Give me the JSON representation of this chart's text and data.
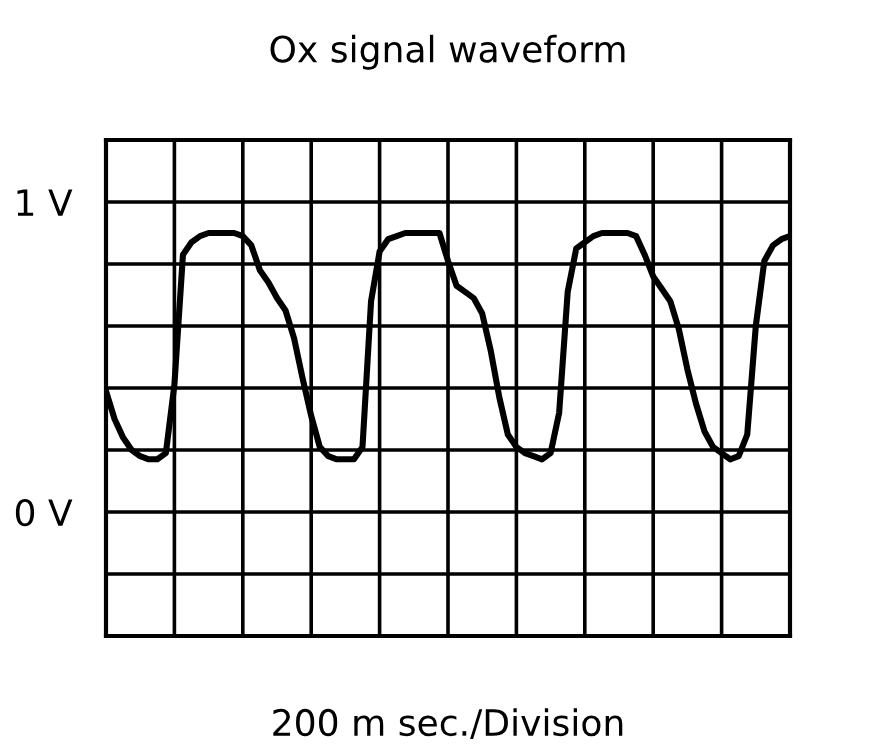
{
  "chart_data": {
    "type": "line",
    "title": "Ox signal waveform",
    "xlabel": "200 m sec./Division",
    "categories": [
      null,
      null,
      null,
      null,
      null,
      null,
      null,
      null,
      null,
      null,
      null,
      null,
      null,
      null,
      null,
      null,
      null,
      null,
      null,
      null,
      null,
      null,
      null,
      null,
      null,
      null,
      null,
      null,
      null,
      null,
      null,
      null,
      null,
      null,
      null,
      null,
      null,
      null,
      null,
      null,
      null,
      null,
      null,
      null,
      null,
      null,
      null,
      null,
      null,
      null,
      null,
      null,
      null,
      null,
      null,
      null,
      null,
      null,
      null,
      null,
      null,
      null,
      null,
      null,
      null,
      null,
      null,
      null,
      null,
      null,
      null,
      null,
      null,
      null,
      null,
      null,
      null,
      null,
      null,
      null,
      null
    ],
    "series": [
      {
        "color": "#000000",
        "values": [
          0.39,
          0.3,
          0.24,
          0.2,
          0.18,
          0.17,
          0.17,
          0.19,
          0.41,
          0.83,
          0.87,
          0.89,
          0.9,
          0.9,
          0.9,
          0.9,
          0.89,
          0.86,
          0.78,
          0.74,
          0.69,
          0.65,
          0.56,
          0.43,
          0.31,
          0.21,
          0.18,
          0.17,
          0.17,
          0.17,
          0.21,
          0.68,
          0.84,
          0.88,
          0.89,
          0.9,
          0.9,
          0.9,
          0.9,
          0.9,
          0.81,
          0.73,
          0.71,
          0.69,
          0.64,
          0.52,
          0.37,
          0.25,
          0.21,
          0.19,
          0.18,
          0.17,
          0.19,
          0.32,
          0.71,
          0.85,
          0.87,
          0.89,
          0.9,
          0.9,
          0.9,
          0.9,
          0.89,
          0.83,
          0.76,
          0.72,
          0.68,
          0.59,
          0.46,
          0.35,
          0.26,
          0.21,
          0.19,
          0.17,
          0.18,
          0.25,
          0.6,
          0.81,
          0.86,
          0.88,
          0.89
        ]
      }
    ],
    "ylim": [
      -0.4,
      1.2
    ],
    "yticks": [
      {
        "value": -0.2,
        "label": null
      },
      {
        "value": 0,
        "label": "0 V"
      },
      {
        "value": 0.2,
        "label": null
      },
      {
        "value": 0.4,
        "label": null
      },
      {
        "value": 0.6,
        "label": null
      },
      {
        "value": 0.8,
        "label": null
      },
      {
        "value": 1,
        "label": "1 V"
      }
    ],
    "grid": true,
    "marker": "none",
    "line_style": "solid",
    "legend": false
  }
}
